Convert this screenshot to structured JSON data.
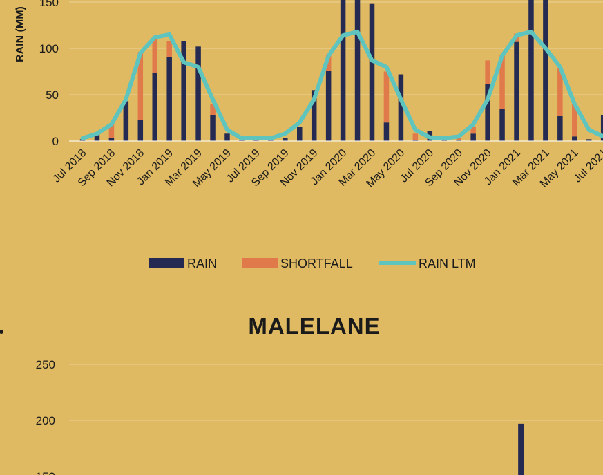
{
  "chart_data": [
    {
      "type": "bar",
      "ylabel": "RAIN (MM)",
      "ylim": [
        0,
        150
      ],
      "yticks": [
        0,
        50,
        100,
        150
      ],
      "grid": true,
      "legend_position": "bottom-center",
      "legend": [
        {
          "name": "RAIN",
          "color": "#252a52"
        },
        {
          "name": "SHORTFALL",
          "color": "#e07a4a"
        },
        {
          "name": "RAIN LTM",
          "color": "#5ec4bd"
        }
      ],
      "x_tick_labels": [
        "Jul 2018",
        "Sep 2018",
        "Nov 2018",
        "Jan 2019",
        "Mar 2019",
        "May 2019",
        "Jul 2019",
        "Sep 2019",
        "Nov 2019",
        "Jan 2020",
        "Mar 2020",
        "May 2020",
        "Jul 2020",
        "Sep 2020",
        "Nov 2020",
        "Jan 2021",
        "Mar 2021",
        "May 2021",
        "Jul 2021"
      ],
      "months": [
        "Jul 2018",
        "Aug 2018",
        "Sep 2018",
        "Oct 2018",
        "Nov 2018",
        "Dec 2018",
        "Jan 2019",
        "Feb 2019",
        "Mar 2019",
        "Apr 2019",
        "May 2019",
        "Jun 2019",
        "Jul 2019",
        "Aug 2019",
        "Sep 2019",
        "Oct 2019",
        "Nov 2019",
        "Dec 2019",
        "Jan 2020",
        "Feb 2020",
        "Mar 2020",
        "Apr 2020",
        "May 2020",
        "Jun 2020",
        "Jul 2020",
        "Aug 2020",
        "Sep 2020",
        "Oct 2020",
        "Nov 2020",
        "Dec 2020",
        "Jan 2021",
        "Feb 2021",
        "Mar 2021",
        "Apr 2021",
        "May 2021",
        "Jun 2021",
        "Jul 2021"
      ],
      "series": [
        {
          "name": "RAIN",
          "values": [
            2,
            9,
            3,
            43,
            23,
            74,
            91,
            108,
            102,
            28,
            8,
            1,
            1,
            1,
            3,
            15,
            55,
            76,
            155,
            155,
            148,
            20,
            72,
            1,
            11,
            1,
            1,
            8,
            62,
            35,
            107,
            155,
            155,
            27,
            5,
            2,
            28
          ]
        },
        {
          "name": "SHORTFALL",
          "values": [
            0,
            0,
            15,
            0,
            73,
            36,
            17,
            0,
            0,
            12,
            0,
            0,
            0,
            0,
            0,
            0,
            0,
            17,
            0,
            0,
            0,
            55,
            0,
            7,
            0,
            0,
            3,
            7,
            25,
            58,
            9,
            0,
            0,
            52,
            35,
            0,
            0
          ]
        },
        {
          "name": "RAIN LTM",
          "values": [
            3,
            8,
            18,
            45,
            95,
            112,
            115,
            85,
            80,
            45,
            12,
            3,
            3,
            3,
            8,
            20,
            45,
            92,
            114,
            118,
            87,
            80,
            45,
            12,
            4,
            3,
            5,
            18,
            45,
            92,
            114,
            118,
            100,
            80,
            40,
            12,
            5
          ]
        }
      ]
    },
    {
      "type": "bar",
      "title": "MALELANE",
      "ylim": [
        150,
        250
      ],
      "yticks": [
        150,
        200,
        250
      ],
      "grid": true,
      "series": [
        {
          "name": "RAIN",
          "month_index": 27,
          "value": 197
        }
      ]
    }
  ]
}
